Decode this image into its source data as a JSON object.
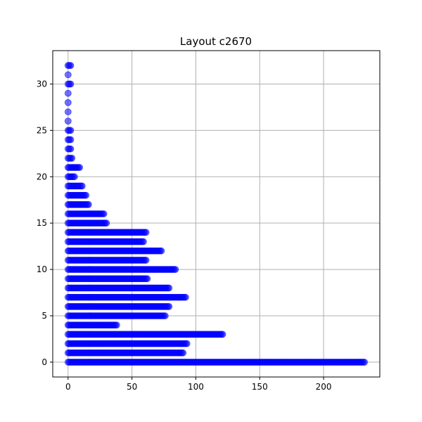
{
  "chart_data": {
    "type": "scatter",
    "title": "Layout c2670",
    "xlabel": "",
    "ylabel": "",
    "xlim": [
      -12,
      244
    ],
    "ylim": [
      -1.6,
      33.6
    ],
    "xticks": [
      0,
      50,
      100,
      150,
      200
    ],
    "yticks": [
      0,
      5,
      10,
      15,
      20,
      25,
      30
    ],
    "grid": true,
    "marker_color": "#0000ff",
    "rows": [
      {
        "y": 0,
        "max_x": 232
      },
      {
        "y": 1,
        "max_x": 90
      },
      {
        "y": 2,
        "max_x": 93
      },
      {
        "y": 3,
        "max_x": 121
      },
      {
        "y": 4,
        "max_x": 38
      },
      {
        "y": 5,
        "max_x": 76
      },
      {
        "y": 6,
        "max_x": 79
      },
      {
        "y": 7,
        "max_x": 92
      },
      {
        "y": 8,
        "max_x": 79
      },
      {
        "y": 9,
        "max_x": 62
      },
      {
        "y": 10,
        "max_x": 84
      },
      {
        "y": 11,
        "max_x": 61
      },
      {
        "y": 12,
        "max_x": 73
      },
      {
        "y": 13,
        "max_x": 59
      },
      {
        "y": 14,
        "max_x": 61
      },
      {
        "y": 15,
        "max_x": 30
      },
      {
        "y": 16,
        "max_x": 28
      },
      {
        "y": 17,
        "max_x": 16
      },
      {
        "y": 18,
        "max_x": 14
      },
      {
        "y": 19,
        "max_x": 11
      },
      {
        "y": 20,
        "max_x": 5
      },
      {
        "y": 21,
        "max_x": 9
      },
      {
        "y": 22,
        "max_x": 3
      },
      {
        "y": 23,
        "max_x": 2
      },
      {
        "y": 24,
        "max_x": 2
      },
      {
        "y": 25,
        "max_x": 2
      },
      {
        "y": 26,
        "max_x": 0
      },
      {
        "y": 27,
        "max_x": 0
      },
      {
        "y": 28,
        "max_x": 0
      },
      {
        "y": 29,
        "max_x": 0
      },
      {
        "y": 30,
        "max_x": 2
      },
      {
        "y": 31,
        "max_x": 0
      },
      {
        "y": 32,
        "max_x": 2
      }
    ]
  }
}
